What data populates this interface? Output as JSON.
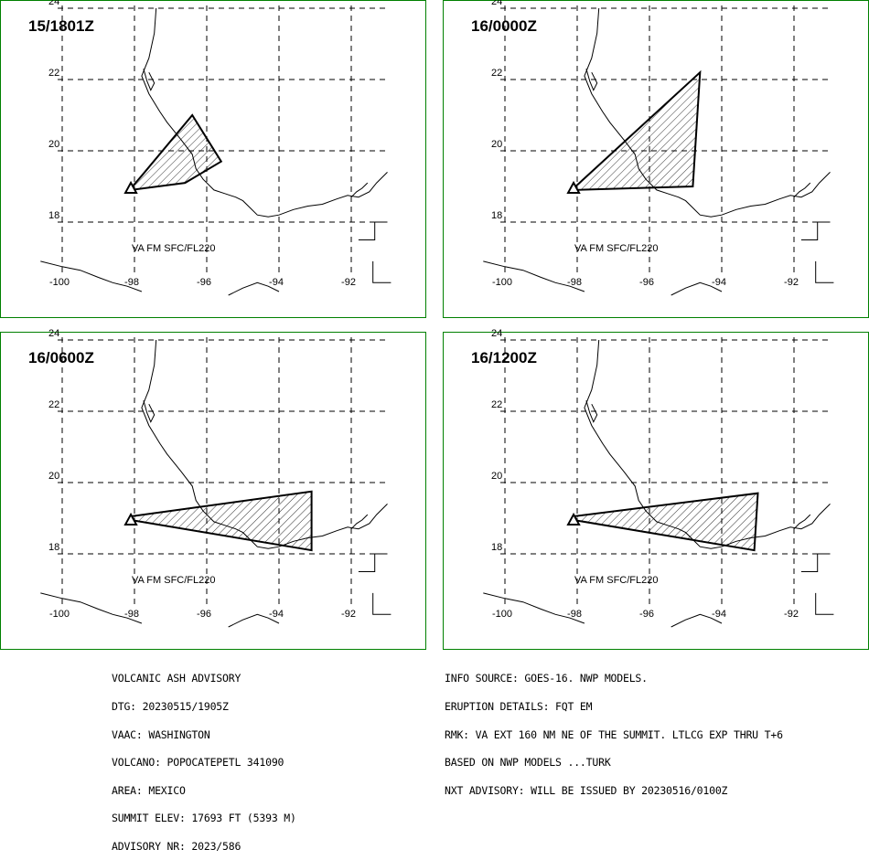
{
  "panels": [
    {
      "time": "15/1801Z",
      "va_label": "VA FM SFC/FL220",
      "polygon": [
        [
          -98.1,
          18.95
        ],
        [
          -97.8,
          19.3
        ],
        [
          -96.4,
          21.0
        ],
        [
          -95.6,
          19.7
        ],
        [
          -96.6,
          19.1
        ],
        [
          -98.1,
          18.9
        ]
      ]
    },
    {
      "time": "16/0000Z",
      "va_label": "VA FM SFC/FL220",
      "polygon": [
        [
          -98.1,
          18.95
        ],
        [
          -94.6,
          22.2
        ],
        [
          -94.8,
          19.0
        ],
        [
          -98.1,
          18.9
        ]
      ]
    },
    {
      "time": "16/0600Z",
      "va_label": "VA FM SFC/FL220",
      "polygon": [
        [
          -98.1,
          19.05
        ],
        [
          -93.1,
          19.75
        ],
        [
          -93.1,
          18.1
        ],
        [
          -98.1,
          18.95
        ]
      ]
    },
    {
      "time": "16/1200Z",
      "va_label": "VA FM SFC/FL220",
      "polygon": [
        [
          -98.1,
          19.05
        ],
        [
          -93.0,
          19.7
        ],
        [
          -93.1,
          18.1
        ],
        [
          -98.1,
          18.95
        ]
      ]
    }
  ],
  "lat_labels": [
    "24",
    "22",
    "20",
    "18"
  ],
  "lon_labels": [
    "-100",
    "-98",
    "-96",
    "-94",
    "-92"
  ],
  "volcano": {
    "lon": -98.1,
    "lat": 18.95
  },
  "advisory_left": [
    "VOLCANIC ASH ADVISORY",
    "DTG: 20230515/1905Z",
    "VAAC: WASHINGTON",
    "VOLCANO: POPOCATEPETL 341090",
    "AREA: MEXICO",
    "SUMMIT ELEV: 17693 FT (5393 M)",
    "ADVISORY NR: 2023/586"
  ],
  "advisory_right": [
    "INFO SOURCE: GOES-16. NWP MODELS.",
    "ERUPTION DETAILS: FQT EM",
    "RMK: VA EXT 160 NM NE OF THE SUMMIT. LTLCG EXP THRU T+6",
    "BASED ON NWP MODELS ...TURK",
    "NXT ADVISORY: WILL BE ISSUED BY 20230516/0100Z"
  ]
}
